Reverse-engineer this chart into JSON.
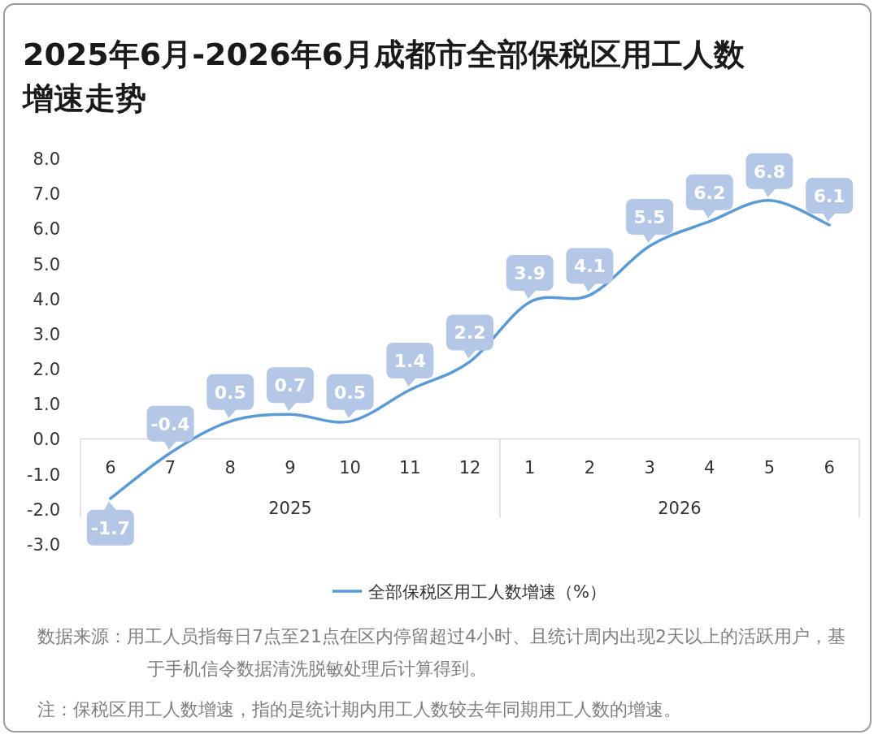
{
  "chart_data": {
    "type": "line",
    "title": "2025年6月-2026年6月成都市全部保税区用工人数增速走势",
    "categories": [
      "6",
      "7",
      "8",
      "9",
      "10",
      "11",
      "12",
      "1",
      "2",
      "3",
      "4",
      "5",
      "6"
    ],
    "series": [
      {
        "name": "全部保税区用工人数增速（%）",
        "color": "#5b9bd5",
        "values": [
          -1.7,
          -0.4,
          0.5,
          0.7,
          0.5,
          1.4,
          2.2,
          3.9,
          4.1,
          5.5,
          6.2,
          6.8,
          6.1
        ]
      }
    ],
    "ylim": [
      -3,
      8
    ],
    "yticks": [
      {
        "value": -3,
        "label": "-3.0"
      },
      {
        "value": -2,
        "label": "-2.0"
      },
      {
        "value": -1,
        "label": "-1.0"
      },
      {
        "value": 0,
        "label": "0.0"
      },
      {
        "value": 1,
        "label": "1.0"
      },
      {
        "value": 2,
        "label": "2.0"
      },
      {
        "value": 3,
        "label": "3.0"
      },
      {
        "value": 4,
        "label": "4.0"
      },
      {
        "value": 5,
        "label": "5.0"
      },
      {
        "value": 6,
        "label": "6.0"
      },
      {
        "value": 7,
        "label": "7.0"
      },
      {
        "value": 8,
        "label": "8.0"
      }
    ],
    "data_labels": true,
    "legend": "bottom",
    "grid": false,
    "marker": "none",
    "line_style": "solid",
    "annotations": [
      "2025",
      "2026",
      "数据来源：用工人员指每日7点至21点在区内停留超过4小时、且统计周内出现2天以上的活跃用户，基于手机信令数据清洗脱敏处理后计算得到。",
      "注：保税区用工人数增速，指的是统计期内用工人数较去年同期用工人数的增速。"
    ]
  }
}
